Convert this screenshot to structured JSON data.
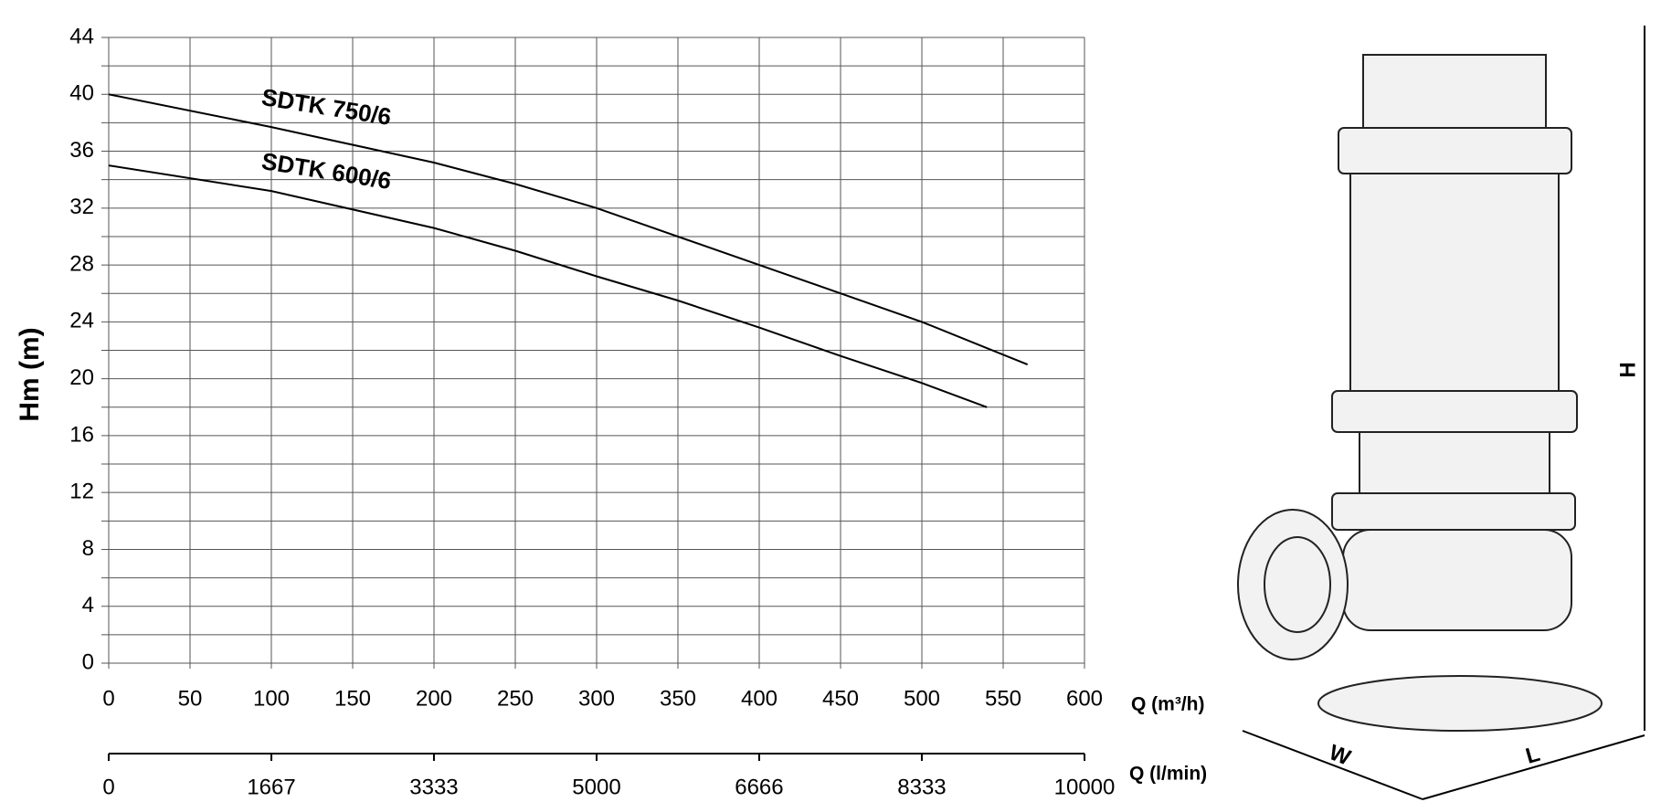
{
  "chart_data": {
    "type": "line",
    "y_label": "Hm (m)",
    "x_label": "Q (m³/h)",
    "x2_label": "Q (l/min)",
    "xlim": [
      0,
      600
    ],
    "xticks": [
      0,
      50,
      100,
      150,
      200,
      250,
      300,
      350,
      400,
      450,
      500,
      550,
      600
    ],
    "x2lim": [
      0,
      10000
    ],
    "x2ticks": [
      0,
      1667,
      3333,
      5000,
      6666,
      8333,
      10000
    ],
    "ylim": [
      0,
      44
    ],
    "yticks": [
      0,
      4,
      8,
      12,
      16,
      20,
      24,
      28,
      32,
      36,
      40,
      44
    ],
    "minor_yticks": [
      2,
      6,
      10,
      14,
      18,
      22,
      26,
      30,
      34,
      38,
      42
    ],
    "grid": true,
    "series": [
      {
        "name": "SDTK 750/6",
        "color": "#000000",
        "x": [
          0,
          100,
          200,
          250,
          300,
          350,
          400,
          450,
          500,
          565
        ],
        "values": [
          40,
          37.7,
          35.2,
          33.7,
          32,
          30,
          28,
          26,
          24,
          21
        ]
      },
      {
        "name": "SDTK 600/6",
        "color": "#000000",
        "x": [
          0,
          100,
          200,
          250,
          300,
          350,
          400,
          450,
          500,
          540
        ],
        "values": [
          35,
          33.2,
          30.6,
          29,
          27.2,
          25.5,
          23.6,
          21.6,
          19.7,
          18
        ]
      }
    ]
  },
  "drawing": {
    "width_label": "W",
    "length_label": "L",
    "height_label": "H"
  }
}
